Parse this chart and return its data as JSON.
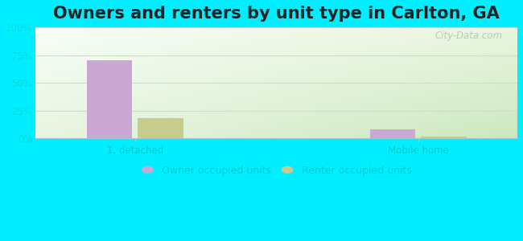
{
  "title": "Owners and renters by unit type in Carlton, GA",
  "categories": [
    "1, detached",
    "Mobile home"
  ],
  "owner_values": [
    70.6,
    8.0
  ],
  "renter_values": [
    18.0,
    2.0
  ],
  "owner_color": "#c9a8d4",
  "renter_color": "#c8cc8a",
  "background_outer": "#00eeff",
  "ylim": [
    0,
    100
  ],
  "yticks": [
    0,
    25,
    50,
    75,
    100
  ],
  "ytick_labels": [
    "0%",
    "25%",
    "50%",
    "75%",
    "100%"
  ],
  "bar_width": 0.32,
  "group_positions": [
    1.0,
    3.0
  ],
  "legend_labels": [
    "Owner occupied units",
    "Renter occupied units"
  ],
  "watermark": "City-Data.com",
  "title_fontsize": 15,
  "tick_fontsize": 8.5,
  "legend_fontsize": 9,
  "tick_color": "#00dddd",
  "label_color": "#00cccc",
  "grid_color": "#ccddcc",
  "gradient_top_left": "#ffffff",
  "gradient_bottom_right": "#d4edcc"
}
